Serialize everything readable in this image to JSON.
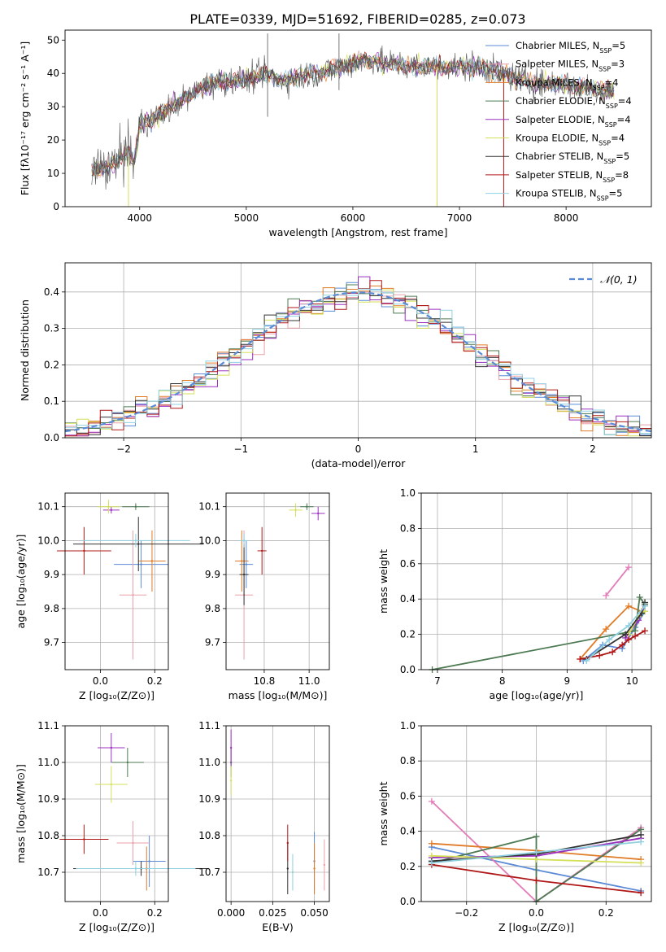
{
  "figure_title": "PLATE=0339, MJD=51692, FIBERID=0285, z=0.073",
  "series_colors": {
    "Chabrier MILES": "#5b8bd6",
    "Salpeter MILES": "#e8a0a8",
    "Kroupa MILES": "#e07b28",
    "Chabrier ELODIE": "#4d7a52",
    "Salpeter ELODIE": "#9b30c0",
    "Kroupa ELODIE": "#d4e05a",
    "Chabrier STELIB": "#333333",
    "Salpeter STELIB": "#b01818",
    "Kroupa STELIB": "#8fd0e0",
    "normal": "#5b8bd6",
    "mass_weight_pink": "#e27bb8",
    "data": "#555555"
  },
  "chart_data": [
    {
      "type": "line",
      "panel": "spectrum",
      "xlabel": "wavelength [Angstrom, rest frame]",
      "ylabel": "Flux [fλ10⁻¹⁷ erg cm⁻² s⁻¹ A⁻¹]",
      "xlim": [
        3300,
        8800
      ],
      "ylim": [
        0,
        53
      ],
      "xticks": [
        "4000",
        "5000",
        "6000",
        "7000",
        "8000"
      ],
      "yticks": [
        "0",
        "10",
        "20",
        "30",
        "40",
        "50"
      ],
      "continuum": {
        "x": [
          3550,
          3700,
          3800,
          3900,
          3950,
          4000,
          4100,
          4200,
          4300,
          4400,
          4500,
          4600,
          4700,
          4800,
          4900,
          5000,
          5100,
          5200,
          5300,
          5400,
          5500,
          5600,
          5700,
          5800,
          5900,
          6000,
          6100,
          6200,
          6300,
          6400,
          6500,
          6600,
          6700,
          6800,
          6900,
          7000,
          7100,
          7200,
          7300,
          7400,
          7500,
          7600,
          7700,
          7800,
          7900,
          8000,
          8100,
          8200,
          8300,
          8400,
          8450
        ],
        "y": [
          11,
          12,
          14,
          17,
          13,
          25,
          26,
          28,
          30,
          32,
          34,
          36,
          37,
          38,
          38,
          38,
          39,
          40,
          38,
          38,
          39,
          40,
          40,
          41,
          42,
          43,
          44,
          44,
          43,
          43,
          42,
          42,
          42,
          42,
          42,
          42,
          42,
          42,
          41,
          40,
          39,
          38,
          37,
          37,
          37,
          37,
          36,
          36,
          35,
          35,
          34
        ]
      },
      "legend": [
        {
          "label": "Chabrier MILES",
          "nssp": "5"
        },
        {
          "label": "Salpeter MILES",
          "nssp": "3"
        },
        {
          "label": "Kroupa MILES",
          "nssp": "4"
        },
        {
          "label": "Chabrier ELODIE",
          "nssp": "4"
        },
        {
          "label": "Salpeter ELODIE",
          "nssp": "4"
        },
        {
          "label": "Kroupa ELODIE",
          "nssp": "4"
        },
        {
          "label": "Chabrier STELIB",
          "nssp": "5"
        },
        {
          "label": "Salpeter STELIB",
          "nssp": "8"
        },
        {
          "label": "Kroupa STELIB",
          "nssp": "5"
        }
      ],
      "legend_placement": "top-right"
    },
    {
      "type": "histogram",
      "panel": "residuals",
      "xlabel": "(data-model)/error",
      "ylabel": "Normed distribution",
      "xlim": [
        -2.5,
        2.5
      ],
      "ylim": [
        0,
        0.48
      ],
      "xticks": [
        "−2",
        "−1",
        "0",
        "1",
        "2"
      ],
      "yticks": [
        "0.0",
        "0.1",
        "0.2",
        "0.3",
        "0.4"
      ],
      "grid": true,
      "legend": [
        {
          "label": "𝒩(0, 1)"
        }
      ],
      "legend_placement": "top-right",
      "bin_width": 0.1
    },
    {
      "type": "scatter",
      "panel": "age-vs-Z",
      "xlabel": "Z [log₁₀(Z/Z⊙)]",
      "ylabel": "age  [log₁₀(age/yr)]",
      "xlim": [
        -0.13,
        0.25
      ],
      "ylim": [
        9.62,
        10.14
      ],
      "xticks": [
        "0.0",
        "0.2"
      ],
      "yticks": [
        "9.7",
        "9.8",
        "9.9",
        "10.0",
        "10.1"
      ],
      "grid": true,
      "points": [
        {
          "series": "Chabrier MILES",
          "x": 0.15,
          "y": 9.93,
          "xerr": 0.1,
          "yerr": 0.07
        },
        {
          "series": "Salpeter MILES",
          "x": 0.12,
          "y": 9.84,
          "xerr": 0.05,
          "yerr": 0.19
        },
        {
          "series": "Kroupa MILES",
          "x": 0.19,
          "y": 9.94,
          "xerr": 0.05,
          "yerr": 0.09
        },
        {
          "series": "Chabrier ELODIE",
          "x": 0.13,
          "y": 10.1,
          "xerr": 0.05,
          "yerr": 0.01
        },
        {
          "series": "Salpeter ELODIE",
          "x": 0.04,
          "y": 10.09,
          "xerr": 0.03,
          "yerr": 0.01
        },
        {
          "series": "Kroupa ELODIE",
          "x": 0.03,
          "y": 10.1,
          "xerr": 0.04,
          "yerr": 0.02
        },
        {
          "series": "Chabrier STELIB",
          "x": 0.14,
          "y": 9.99,
          "xerr": 0.24,
          "yerr": 0.08
        },
        {
          "series": "Salpeter STELIB",
          "x": -0.06,
          "y": 9.97,
          "xerr": 0.1,
          "yerr": 0.07
        },
        {
          "series": "Kroupa STELIB",
          "x": 0.13,
          "y": 10.0,
          "xerr": 0.2,
          "yerr": 0.02
        }
      ]
    },
    {
      "type": "scatter",
      "panel": "age-vs-mass",
      "xlabel": "mass [log₁₀(M/M⊙)]",
      "ylabel": "",
      "xlim": [
        10.63,
        11.09
      ],
      "ylim": [
        9.62,
        10.14
      ],
      "xticks": [
        "10.8",
        "11.0"
      ],
      "yticks": [
        "9.7",
        "9.8",
        "9.9",
        "10.0",
        "10.1"
      ],
      "grid": true,
      "points": [
        {
          "series": "Chabrier MILES",
          "x": 10.72,
          "y": 9.93,
          "xerr": 0.03,
          "yerr": 0.07
        },
        {
          "series": "Salpeter MILES",
          "x": 10.71,
          "y": 9.84,
          "xerr": 0.04,
          "yerr": 0.19
        },
        {
          "series": "Kroupa MILES",
          "x": 10.7,
          "y": 9.94,
          "xerr": 0.03,
          "yerr": 0.09
        },
        {
          "series": "Chabrier ELODIE",
          "x": 10.99,
          "y": 10.1,
          "xerr": 0.03,
          "yerr": 0.01
        },
        {
          "series": "Salpeter ELODIE",
          "x": 11.04,
          "y": 10.08,
          "xerr": 0.03,
          "yerr": 0.02
        },
        {
          "series": "Kroupa ELODIE",
          "x": 10.94,
          "y": 10.09,
          "xerr": 0.03,
          "yerr": 0.02
        },
        {
          "series": "Chabrier STELIB",
          "x": 10.71,
          "y": 9.9,
          "xerr": 0.02,
          "yerr": 0.09
        },
        {
          "series": "Salpeter STELIB",
          "x": 10.79,
          "y": 9.97,
          "xerr": 0.02,
          "yerr": 0.07
        },
        {
          "series": "Kroupa STELIB",
          "x": 10.71,
          "y": 10.0,
          "xerr": 0.02,
          "yerr": 0.02
        }
      ]
    },
    {
      "type": "line",
      "panel": "mass-weight-vs-age",
      "xlabel": "age  [log₁₀(age/yr)]",
      "ylabel": "mass weight",
      "xlim": [
        6.75,
        10.3
      ],
      "ylim": [
        0,
        1
      ],
      "xticks": [
        "7",
        "8",
        "9",
        "10"
      ],
      "yticks": [
        "0.0",
        "0.2",
        "0.4",
        "0.6",
        "0.8",
        "1.0"
      ],
      "grid": true,
      "series": [
        {
          "name": "Chabrier MILES",
          "x": [
            9.25,
            9.55,
            9.85,
            10.05,
            10.2
          ],
          "y": [
            0.05,
            0.14,
            0.12,
            0.24,
            0.33
          ]
        },
        {
          "name": "Salpeter MILES",
          "x": [
            9.6,
            9.95
          ],
          "y": [
            0.42,
            0.58
          ]
        },
        {
          "name": "Kroupa MILES",
          "x": [
            9.2,
            9.6,
            9.95,
            10.15
          ],
          "y": [
            0.06,
            0.23,
            0.36,
            0.33
          ]
        },
        {
          "name": "Chabrier ELODIE",
          "x": [
            6.92,
            10.05,
            10.12,
            10.2
          ],
          "y": [
            0.0,
            0.22,
            0.41,
            0.37
          ]
        },
        {
          "name": "Salpeter ELODIE",
          "x": [
            9.9,
            10.1,
            10.2
          ],
          "y": [
            0.18,
            0.28,
            0.36
          ]
        },
        {
          "name": "Kroupa ELODIE",
          "x": [
            9.95,
            10.1,
            10.2
          ],
          "y": [
            0.2,
            0.3,
            0.33
          ]
        },
        {
          "name": "Chabrier STELIB",
          "x": [
            9.3,
            9.9,
            10.15,
            10.2
          ],
          "y": [
            0.06,
            0.2,
            0.32,
            0.38
          ]
        },
        {
          "name": "Salpeter STELIB",
          "x": [
            9.2,
            9.5,
            9.7,
            9.85,
            9.95,
            10.05,
            10.2
          ],
          "y": [
            0.06,
            0.08,
            0.1,
            0.14,
            0.17,
            0.19,
            0.22
          ]
        },
        {
          "name": "Kroupa STELIB",
          "x": [
            9.3,
            9.65,
            9.95,
            10.2
          ],
          "y": [
            0.05,
            0.17,
            0.25,
            0.36
          ]
        }
      ]
    },
    {
      "type": "scatter",
      "panel": "mass-vs-Z",
      "xlabel": "Z [log₁₀(Z/Z⊙)]",
      "ylabel": "mass [log₁₀(M/M⊙)]",
      "xlim": [
        -0.13,
        0.25
      ],
      "ylim": [
        10.62,
        11.1
      ],
      "xticks": [
        "0.0",
        "0.2"
      ],
      "yticks": [
        "10.7",
        "10.8",
        "10.9",
        "11.0",
        "11.1"
      ],
      "grid": true,
      "points": [
        {
          "series": "Chabrier MILES",
          "x": 0.18,
          "y": 10.73,
          "xerr": 0.06,
          "yerr": 0.07
        },
        {
          "series": "Salpeter MILES",
          "x": 0.12,
          "y": 10.78,
          "xerr": 0.06,
          "yerr": 0.06
        },
        {
          "series": "Kroupa MILES",
          "x": 0.17,
          "y": 10.71,
          "xerr": 0.07,
          "yerr": 0.06
        },
        {
          "series": "Chabrier ELODIE",
          "x": 0.1,
          "y": 11.0,
          "xerr": 0.06,
          "yerr": 0.04
        },
        {
          "series": "Salpeter ELODIE",
          "x": 0.04,
          "y": 11.04,
          "xerr": 0.05,
          "yerr": 0.04
        },
        {
          "series": "Kroupa ELODIE",
          "x": 0.04,
          "y": 10.94,
          "xerr": 0.06,
          "yerr": 0.05
        },
        {
          "series": "Chabrier STELIB",
          "x": 0.15,
          "y": 10.71,
          "xerr": 0.25,
          "yerr": 0.02
        },
        {
          "series": "Salpeter STELIB",
          "x": -0.06,
          "y": 10.79,
          "xerr": 0.09,
          "yerr": 0.04
        },
        {
          "series": "Kroupa STELIB",
          "x": 0.13,
          "y": 10.71,
          "xerr": 0.22,
          "yerr": 0.02
        }
      ]
    },
    {
      "type": "scatter",
      "panel": "mass-vs-ebv",
      "xlabel": "E(B-V)",
      "ylabel": "",
      "xlim": [
        -0.003,
        0.059
      ],
      "ylim": [
        10.62,
        11.1
      ],
      "xticks": [
        "0.000",
        "0.025",
        "0.050"
      ],
      "yticks": [
        "10.7",
        "10.8",
        "10.9",
        "11.0",
        "11.1"
      ],
      "grid": true,
      "points": [
        {
          "series": "Chabrier MILES",
          "x": 0.05,
          "y": 10.73,
          "xerr": 0,
          "yerr": 0.08
        },
        {
          "series": "Salpeter MILES",
          "x": 0.056,
          "y": 10.72,
          "xerr": 0,
          "yerr": 0.07
        },
        {
          "series": "Kroupa MILES",
          "x": 0.05,
          "y": 10.71,
          "xerr": 0,
          "yerr": 0.07
        },
        {
          "series": "Chabrier ELODIE",
          "x": 0.0,
          "y": 11.0,
          "xerr": 0,
          "yerr": 0.04
        },
        {
          "series": "Salpeter ELODIE",
          "x": 0.0,
          "y": 11.04,
          "xerr": 0,
          "yerr": 0.05
        },
        {
          "series": "Kroupa ELODIE",
          "x": 0.0,
          "y": 10.95,
          "xerr": 0,
          "yerr": 0.04
        },
        {
          "series": "Chabrier STELIB",
          "x": 0.034,
          "y": 10.71,
          "xerr": 0,
          "yerr": 0.07
        },
        {
          "series": "Salpeter STELIB",
          "x": 0.034,
          "y": 10.78,
          "xerr": 0,
          "yerr": 0.05
        },
        {
          "series": "Kroupa STELIB",
          "x": 0.037,
          "y": 10.7,
          "xerr": 0,
          "yerr": 0.05
        }
      ]
    },
    {
      "type": "line",
      "panel": "mass-weight-vs-Z",
      "xlabel": "Z [log₁₀(Z/Z⊙)]",
      "ylabel": "mass weight",
      "xlim": [
        -0.33,
        0.33
      ],
      "ylim": [
        0,
        1
      ],
      "xticks": [
        "−0.2",
        "0.0",
        "0.2"
      ],
      "yticks": [
        "0.0",
        "0.2",
        "0.4",
        "0.6",
        "0.8",
        "1.0"
      ],
      "grid": true,
      "series": [
        {
          "name": "Chabrier MILES",
          "x": [
            -0.3,
            0.0,
            0.3
          ],
          "y": [
            0.31,
            0.18,
            0.06
          ]
        },
        {
          "name": "Salpeter MILES",
          "x": [
            -0.3,
            0.0,
            0.3
          ],
          "y": [
            0.57,
            0.0,
            0.42
          ]
        },
        {
          "name": "Kroupa MILES",
          "x": [
            -0.3,
            0.0,
            0.3
          ],
          "y": [
            0.33,
            0.29,
            0.24
          ]
        },
        {
          "name": "Chabrier ELODIE",
          "x": [
            -0.3,
            0.0,
            0.0,
            0.3
          ],
          "y": [
            0.22,
            0.37,
            0.0,
            0.41
          ]
        },
        {
          "name": "Salpeter ELODIE",
          "x": [
            -0.3,
            0.0,
            0.3
          ],
          "y": [
            0.25,
            0.26,
            0.36
          ]
        },
        {
          "name": "Kroupa ELODIE",
          "x": [
            -0.3,
            0.0,
            0.3
          ],
          "y": [
            0.26,
            0.24,
            0.22
          ]
        },
        {
          "name": "Chabrier STELIB",
          "x": [
            -0.3,
            0.0,
            0.3
          ],
          "y": [
            0.23,
            0.27,
            0.38
          ]
        },
        {
          "name": "Salpeter STELIB",
          "x": [
            -0.3,
            0.0,
            0.3
          ],
          "y": [
            0.21,
            0.12,
            0.05
          ]
        },
        {
          "name": "Kroupa STELIB",
          "x": [
            -0.3,
            0.0,
            0.3
          ],
          "y": [
            0.22,
            0.28,
            0.34
          ]
        }
      ]
    }
  ]
}
